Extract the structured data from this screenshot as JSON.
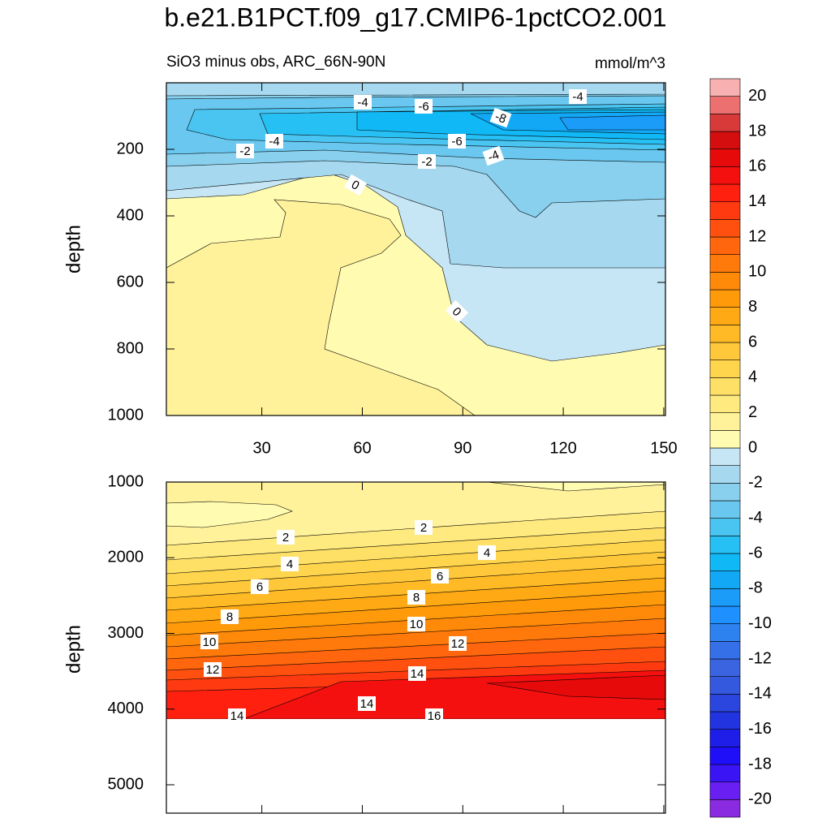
{
  "title": "b.e21.B1PCT.f09_g17.CMIP6-1pctCO2.001",
  "chart_data": [
    {
      "type": "contour",
      "subtitle": "SiO3 minus obs, ARC_66N-90N",
      "units": "mmol/m^3",
      "ylabel": "depth",
      "xlim": [
        1.5,
        150.5
      ],
      "ylim": [
        1000,
        0
      ],
      "xticks": [
        30,
        60,
        90,
        120,
        150
      ],
      "yticks": [
        200,
        400,
        600,
        800,
        1000
      ],
      "contour_labels": [
        -4,
        -6,
        -4,
        -8,
        -4,
        -2,
        -6,
        -2,
        -4,
        0,
        0
      ]
    },
    {
      "type": "contour",
      "ylabel": "depth",
      "xlim": [
        1.5,
        150.5
      ],
      "ylim": [
        5375,
        1000
      ],
      "yticks": [
        1000,
        2000,
        3000,
        4000,
        5000
      ],
      "contour_labels": [
        2,
        2,
        4,
        4,
        6,
        6,
        8,
        8,
        10,
        10,
        12,
        12,
        14,
        14,
        14,
        16
      ]
    },
    {
      "type": "colorbar",
      "levels": [
        -20,
        -19,
        -18,
        -17,
        -16,
        -15,
        -14,
        -13,
        -12,
        -11,
        -10,
        -9,
        -8,
        -7,
        -6,
        -5,
        -4,
        -3,
        -2,
        -1,
        0,
        1,
        2,
        3,
        4,
        5,
        6,
        7,
        8,
        9,
        10,
        11,
        12,
        13,
        14,
        15,
        16,
        17,
        18,
        19,
        20
      ],
      "colors": [
        "#8a2be2",
        "#6a1ff2",
        "#3a14f5",
        "#1f0ff8",
        "#1e1ee8",
        "#2233e0",
        "#2a46de",
        "#3458de",
        "#3a64e0",
        "#3570e8",
        "#2d82f0",
        "#1e90ff",
        "#1a9cf8",
        "#13a8f5",
        "#10b8f5",
        "#27c0f4",
        "#4ac4f0",
        "#6ac8f0",
        "#88d0ee",
        "#a6d9f0",
        "#c6e6f5",
        "#fffbb0",
        "#fff29a",
        "#ffea80",
        "#ffe066",
        "#ffd54d",
        "#ffc83a",
        "#ffba26",
        "#ffaa14",
        "#ff9a0a",
        "#ff8a0a",
        "#ff7a0a",
        "#ff660d",
        "#ff5010",
        "#ff3a10",
        "#ff2010",
        "#f51010",
        "#e60a0a",
        "#d40e0e",
        "#d83a3a",
        "#ec7070",
        "#f8b0b0"
      ],
      "ticks": [
        -20,
        -18,
        -16,
        -14,
        -12,
        -10,
        -8,
        -6,
        -4,
        -2,
        0,
        2,
        4,
        6,
        8,
        10,
        12,
        14,
        16,
        18,
        20
      ]
    }
  ]
}
